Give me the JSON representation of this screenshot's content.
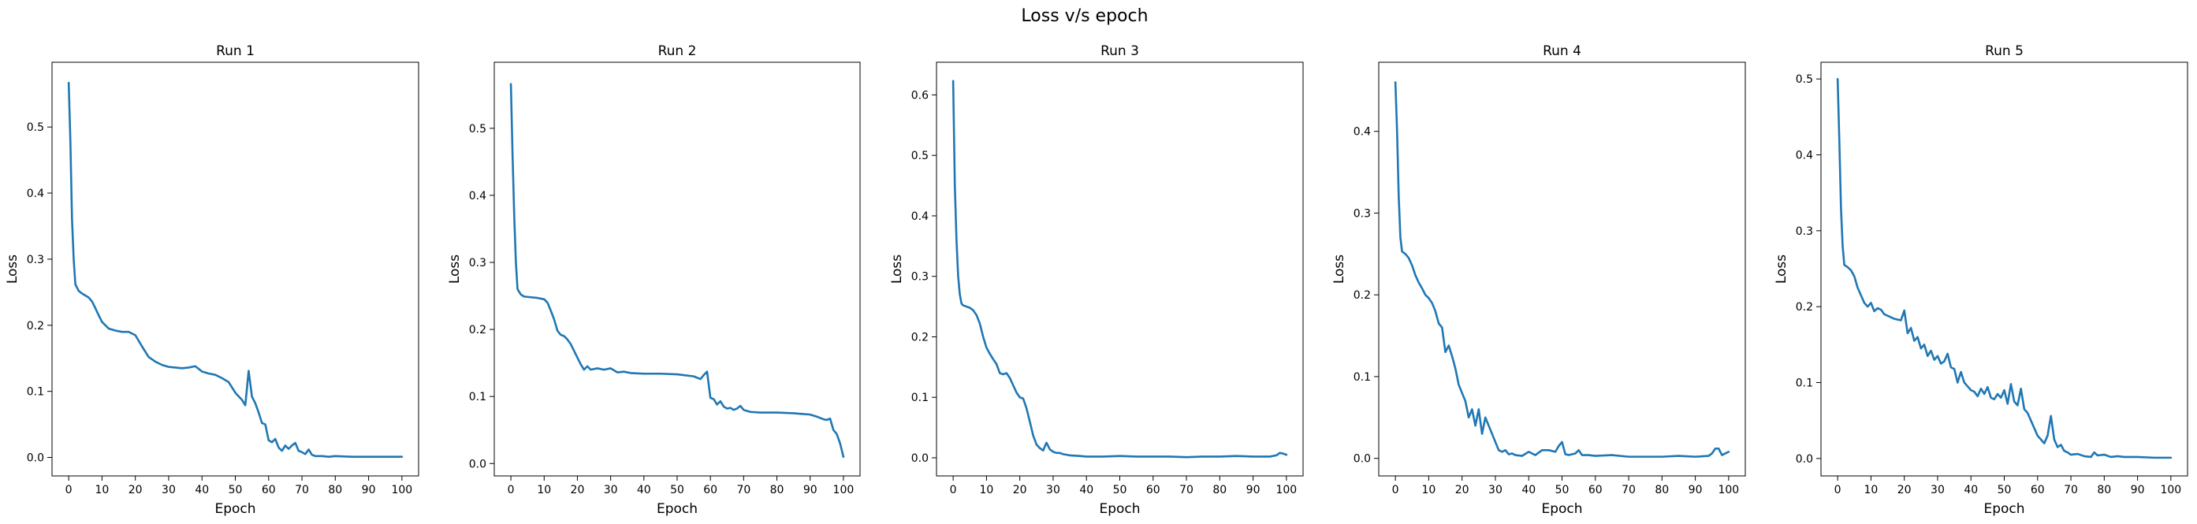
{
  "figure": {
    "title": "Loss v/s epoch"
  },
  "style": {
    "line_color": "#1f77b4",
    "axes_color": "#000000",
    "background": "#ffffff"
  },
  "chart_data": [
    {
      "type": "line",
      "title": "Run 1",
      "xlabel": "Epoch",
      "ylabel": "Loss",
      "xlim": [
        -5,
        105
      ],
      "ylim": [
        -0.028,
        0.598
      ],
      "xticks": [
        0,
        10,
        20,
        30,
        40,
        50,
        60,
        70,
        80,
        90,
        100
      ],
      "yticks": [
        0.0,
        0.1,
        0.2,
        0.3,
        0.4,
        0.5
      ],
      "ytick_labels": [
        "0.0",
        "0.1",
        "0.2",
        "0.3",
        "0.4",
        "0.5"
      ],
      "grid": false,
      "legend": "none",
      "series": [
        {
          "x": [
            0,
            0.5,
            1,
            1.5,
            2,
            3,
            4,
            5,
            6,
            7,
            8,
            9,
            10,
            12,
            14,
            16,
            18,
            20,
            22,
            24,
            26,
            28,
            30,
            32,
            34,
            36,
            38,
            40,
            42,
            44,
            46,
            48,
            50,
            52,
            53,
            54,
            55,
            56,
            57,
            58,
            59,
            60,
            61,
            62,
            63,
            64,
            65,
            66,
            67,
            68,
            69,
            70,
            71,
            72,
            73,
            74,
            76,
            78,
            80,
            85,
            90,
            95,
            100
          ],
          "y": [
            0.567,
            0.48,
            0.36,
            0.3,
            0.262,
            0.252,
            0.248,
            0.245,
            0.242,
            0.236,
            0.226,
            0.215,
            0.205,
            0.195,
            0.192,
            0.19,
            0.19,
            0.185,
            0.168,
            0.152,
            0.145,
            0.14,
            0.137,
            0.136,
            0.135,
            0.136,
            0.138,
            0.13,
            0.127,
            0.125,
            0.12,
            0.114,
            0.098,
            0.087,
            0.079,
            0.131,
            0.092,
            0.082,
            0.068,
            0.052,
            0.05,
            0.026,
            0.023,
            0.028,
            0.015,
            0.01,
            0.018,
            0.013,
            0.018,
            0.022,
            0.01,
            0.008,
            0.005,
            0.012,
            0.004,
            0.002,
            0.002,
            0.001,
            0.002,
            0.001,
            0.001,
            0.001,
            0.001
          ]
        }
      ]
    },
    {
      "type": "line",
      "title": "Run 2",
      "xlabel": "Epoch",
      "ylabel": "Loss",
      "xlim": [
        -5,
        105
      ],
      "ylim": [
        -0.0185,
        0.5985
      ],
      "xticks": [
        0,
        10,
        20,
        30,
        40,
        50,
        60,
        70,
        80,
        90,
        100
      ],
      "yticks": [
        0.0,
        0.1,
        0.2,
        0.3,
        0.4,
        0.5
      ],
      "ytick_labels": [
        "0.0",
        "0.1",
        "0.2",
        "0.3",
        "0.4",
        "0.5"
      ],
      "grid": false,
      "legend": "none",
      "series": [
        {
          "x": [
            0,
            0.5,
            1,
            1.5,
            2,
            3,
            4,
            6,
            8,
            10,
            11,
            12,
            13,
            14,
            15,
            16,
            17,
            18,
            19,
            20,
            21,
            22,
            23,
            24,
            26,
            28,
            30,
            32,
            34,
            36,
            40,
            45,
            50,
            55,
            57,
            58,
            59,
            60,
            61,
            62,
            63,
            64,
            65,
            66,
            67,
            68,
            69,
            70,
            72,
            75,
            80,
            85,
            90,
            92,
            94,
            95,
            96,
            97,
            98,
            99,
            100
          ],
          "y": [
            0.566,
            0.46,
            0.37,
            0.3,
            0.26,
            0.252,
            0.249,
            0.248,
            0.247,
            0.245,
            0.24,
            0.228,
            0.215,
            0.198,
            0.192,
            0.19,
            0.185,
            0.178,
            0.168,
            0.158,
            0.148,
            0.14,
            0.145,
            0.14,
            0.142,
            0.14,
            0.142,
            0.136,
            0.137,
            0.135,
            0.134,
            0.134,
            0.133,
            0.13,
            0.126,
            0.132,
            0.137,
            0.098,
            0.096,
            0.088,
            0.093,
            0.085,
            0.082,
            0.083,
            0.08,
            0.082,
            0.086,
            0.08,
            0.077,
            0.076,
            0.076,
            0.075,
            0.073,
            0.07,
            0.066,
            0.065,
            0.067,
            0.05,
            0.044,
            0.03,
            0.01
          ]
        }
      ]
    },
    {
      "type": "line",
      "title": "Run 3",
      "xlabel": "Epoch",
      "ylabel": "Loss",
      "xlim": [
        -5,
        105
      ],
      "ylim": [
        -0.03,
        0.654
      ],
      "xticks": [
        0,
        10,
        20,
        30,
        40,
        50,
        60,
        70,
        80,
        90,
        100
      ],
      "yticks": [
        0.0,
        0.1,
        0.2,
        0.3,
        0.4,
        0.5,
        0.6
      ],
      "ytick_labels": [
        "0.0",
        "0.1",
        "0.2",
        "0.3",
        "0.4",
        "0.5",
        "0.6"
      ],
      "grid": false,
      "legend": "none",
      "series": [
        {
          "x": [
            0,
            0.5,
            1,
            1.5,
            2,
            2.5,
            3,
            4,
            5,
            6,
            7,
            8,
            9,
            10,
            11,
            12,
            13,
            14,
            15,
            16,
            17,
            18,
            19,
            20,
            21,
            22,
            23,
            24,
            25,
            26,
            27,
            28,
            29,
            30,
            31,
            32,
            33,
            35,
            38,
            40,
            45,
            50,
            55,
            60,
            65,
            70,
            75,
            80,
            85,
            90,
            95,
            97,
            98,
            99,
            100
          ],
          "y": [
            0.623,
            0.45,
            0.36,
            0.3,
            0.27,
            0.255,
            0.252,
            0.25,
            0.248,
            0.244,
            0.236,
            0.222,
            0.2,
            0.182,
            0.172,
            0.163,
            0.155,
            0.14,
            0.138,
            0.14,
            0.132,
            0.12,
            0.108,
            0.1,
            0.098,
            0.082,
            0.06,
            0.037,
            0.022,
            0.016,
            0.012,
            0.025,
            0.014,
            0.01,
            0.008,
            0.008,
            0.006,
            0.004,
            0.003,
            0.002,
            0.002,
            0.003,
            0.002,
            0.002,
            0.002,
            0.001,
            0.002,
            0.002,
            0.003,
            0.002,
            0.002,
            0.004,
            0.008,
            0.007,
            0.005
          ]
        }
      ]
    },
    {
      "type": "line",
      "title": "Run 4",
      "xlabel": "Epoch",
      "ylabel": "Loss",
      "xlim": [
        -5,
        105
      ],
      "ylim": [
        -0.0215,
        0.4845
      ],
      "xticks": [
        0,
        10,
        20,
        30,
        40,
        50,
        60,
        70,
        80,
        90,
        100
      ],
      "yticks": [
        0.0,
        0.1,
        0.2,
        0.3,
        0.4
      ],
      "ytick_labels": [
        "0.0",
        "0.1",
        "0.2",
        "0.3",
        "0.4"
      ],
      "grid": false,
      "legend": "none",
      "series": [
        {
          "x": [
            0,
            0.5,
            1,
            1.5,
            2,
            3,
            4,
            5,
            6,
            7,
            8,
            9,
            10,
            11,
            12,
            13,
            14,
            15,
            16,
            17,
            18,
            19,
            20,
            21,
            22,
            23,
            24,
            25,
            26,
            27,
            28,
            29,
            30,
            31,
            32,
            33,
            34,
            35,
            36,
            38,
            40,
            42,
            44,
            46,
            48,
            49,
            50,
            51,
            52,
            54,
            55,
            56,
            58,
            60,
            65,
            70,
            75,
            80,
            85,
            90,
            94,
            95,
            96,
            97,
            98,
            99,
            100
          ],
          "y": [
            0.46,
            0.4,
            0.32,
            0.27,
            0.253,
            0.25,
            0.245,
            0.236,
            0.224,
            0.215,
            0.208,
            0.2,
            0.196,
            0.19,
            0.18,
            0.165,
            0.16,
            0.13,
            0.138,
            0.125,
            0.11,
            0.09,
            0.08,
            0.07,
            0.05,
            0.06,
            0.04,
            0.06,
            0.03,
            0.05,
            0.04,
            0.03,
            0.02,
            0.01,
            0.008,
            0.01,
            0.005,
            0.006,
            0.004,
            0.003,
            0.008,
            0.004,
            0.01,
            0.01,
            0.008,
            0.015,
            0.02,
            0.005,
            0.004,
            0.006,
            0.01,
            0.004,
            0.004,
            0.003,
            0.004,
            0.002,
            0.002,
            0.002,
            0.003,
            0.002,
            0.003,
            0.006,
            0.012,
            0.012,
            0.004,
            0.006,
            0.008
          ]
        }
      ]
    },
    {
      "type": "line",
      "title": "Run 5",
      "xlabel": "Epoch",
      "ylabel": "Loss",
      "xlim": [
        -5,
        105
      ],
      "ylim": [
        -0.023,
        0.522
      ],
      "xticks": [
        0,
        10,
        20,
        30,
        40,
        50,
        60,
        70,
        80,
        90,
        100
      ],
      "yticks": [
        0.0,
        0.1,
        0.2,
        0.3,
        0.4,
        0.5
      ],
      "ytick_labels": [
        "0.0",
        "0.1",
        "0.2",
        "0.3",
        "0.4",
        "0.5"
      ],
      "grid": false,
      "legend": "none",
      "series": [
        {
          "x": [
            0,
            0.5,
            1,
            1.5,
            2,
            3,
            4,
            5,
            6,
            7,
            8,
            9,
            10,
            11,
            12,
            13,
            14,
            15,
            16,
            17,
            18,
            19,
            20,
            21,
            22,
            23,
            24,
            25,
            26,
            27,
            28,
            29,
            30,
            31,
            32,
            33,
            34,
            35,
            36,
            37,
            38,
            39,
            40,
            41,
            42,
            43,
            44,
            45,
            46,
            47,
            48,
            49,
            50,
            51,
            52,
            53,
            54,
            55,
            56,
            57,
            58,
            59,
            60,
            61,
            62,
            63,
            64,
            65,
            66,
            67,
            68,
            69,
            70,
            72,
            74,
            76,
            77,
            78,
            80,
            82,
            84,
            86,
            88,
            90,
            95,
            100
          ],
          "y": [
            0.5,
            0.42,
            0.33,
            0.28,
            0.255,
            0.252,
            0.248,
            0.24,
            0.225,
            0.215,
            0.205,
            0.2,
            0.205,
            0.194,
            0.198,
            0.196,
            0.19,
            0.188,
            0.186,
            0.184,
            0.183,
            0.182,
            0.195,
            0.165,
            0.172,
            0.155,
            0.16,
            0.145,
            0.15,
            0.135,
            0.142,
            0.13,
            0.135,
            0.125,
            0.128,
            0.138,
            0.12,
            0.118,
            0.1,
            0.114,
            0.1,
            0.095,
            0.09,
            0.088,
            0.082,
            0.092,
            0.085,
            0.094,
            0.08,
            0.078,
            0.085,
            0.08,
            0.09,
            0.072,
            0.098,
            0.075,
            0.07,
            0.092,
            0.065,
            0.06,
            0.05,
            0.04,
            0.03,
            0.025,
            0.02,
            0.03,
            0.056,
            0.025,
            0.015,
            0.018,
            0.01,
            0.008,
            0.005,
            0.006,
            0.003,
            0.002,
            0.008,
            0.004,
            0.005,
            0.002,
            0.003,
            0.002,
            0.002,
            0.002,
            0.001,
            0.001
          ]
        }
      ]
    }
  ]
}
